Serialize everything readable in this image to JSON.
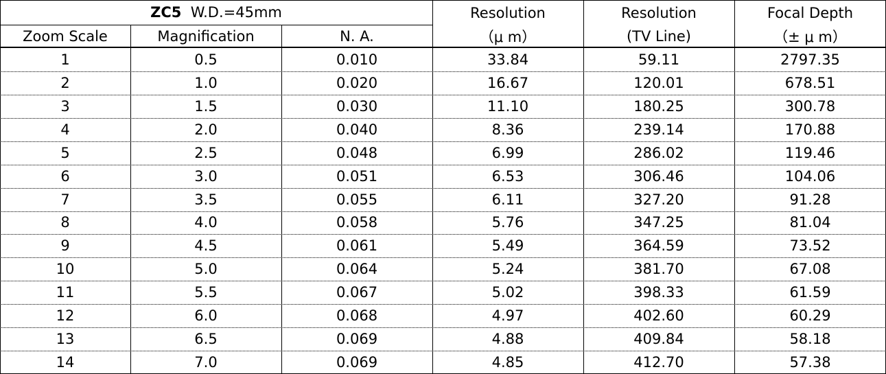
{
  "header": {
    "title": "ZC5",
    "subtitle": "W.D.=45mm",
    "columns": [
      "Zoom Scale",
      "Magnification",
      "N. A."
    ],
    "groups": [
      [
        "Resolution",
        "（μ m）"
      ],
      [
        "Resolution",
        "(TV Line)"
      ],
      [
        "Focal Depth",
        "（± μ m）"
      ]
    ]
  },
  "table": {
    "rows": [
      [
        "1",
        "0.5",
        "0.010",
        "33.84",
        "59.11",
        "2797.35"
      ],
      [
        "2",
        "1.0",
        "0.020",
        "16.67",
        "120.01",
        "678.51"
      ],
      [
        "3",
        "1.5",
        "0.030",
        "11.10",
        "180.25",
        "300.78"
      ],
      [
        "4",
        "2.0",
        "0.040",
        "8.36",
        "239.14",
        "170.88"
      ],
      [
        "5",
        "2.5",
        "0.048",
        "6.99",
        "286.02",
        "119.46"
      ],
      [
        "6",
        "3.0",
        "0.051",
        "6.53",
        "306.46",
        "104.06"
      ],
      [
        "7",
        "3.5",
        "0.055",
        "6.11",
        "327.20",
        "91.28"
      ],
      [
        "8",
        "4.0",
        "0.058",
        "5.76",
        "347.25",
        "81.04"
      ],
      [
        "9",
        "4.5",
        "0.061",
        "5.49",
        "364.59",
        "73.52"
      ],
      [
        "10",
        "5.0",
        "0.064",
        "5.24",
        "381.70",
        "67.08"
      ],
      [
        "11",
        "5.5",
        "0.067",
        "5.02",
        "398.33",
        "61.59"
      ],
      [
        "12",
        "6.0",
        "0.068",
        "4.97",
        "402.60",
        "60.29"
      ],
      [
        "13",
        "6.5",
        "0.069",
        "4.88",
        "409.84",
        "58.18"
      ],
      [
        "14",
        "7.0",
        "0.069",
        "4.85",
        "412.70",
        "57.38"
      ]
    ]
  }
}
